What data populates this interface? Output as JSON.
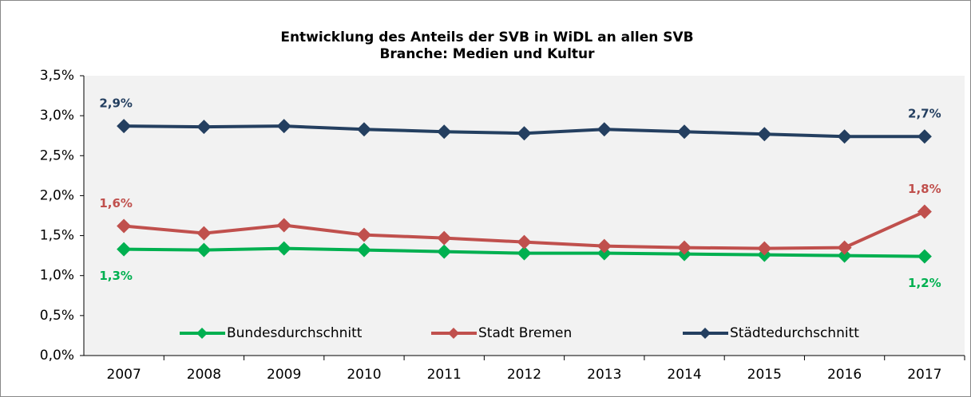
{
  "chart_data": {
    "type": "line",
    "title": "Entwicklung des Anteils der SVB in WiDL an allen SVB",
    "subtitle": "Branche: Medien und Kultur",
    "categories": [
      "2007",
      "2008",
      "2009",
      "2010",
      "2011",
      "2012",
      "2013",
      "2014",
      "2015",
      "2016",
      "2017"
    ],
    "series": [
      {
        "name": "Bundesdurchschnitt",
        "color": "#00b050",
        "values": [
          1.33,
          1.32,
          1.34,
          1.32,
          1.3,
          1.28,
          1.28,
          1.27,
          1.26,
          1.25,
          1.24
        ],
        "value_labels": [
          "1,3%",
          null,
          null,
          null,
          null,
          null,
          null,
          null,
          null,
          null,
          "1,2%"
        ]
      },
      {
        "name": "Stadt Bremen",
        "color": "#c0504d",
        "values": [
          1.62,
          1.53,
          1.63,
          1.51,
          1.47,
          1.42,
          1.37,
          1.35,
          1.34,
          1.35,
          1.8
        ],
        "value_labels": [
          "1,6%",
          null,
          null,
          null,
          null,
          null,
          null,
          null,
          null,
          null,
          "1,8%"
        ]
      },
      {
        "name": "Städtedurchschnitt",
        "color": "#243f60",
        "values": [
          2.87,
          2.86,
          2.87,
          2.83,
          2.8,
          2.78,
          2.83,
          2.8,
          2.77,
          2.74,
          2.74
        ],
        "value_labels": [
          "2,9%",
          null,
          null,
          null,
          null,
          null,
          null,
          null,
          null,
          null,
          "2,7%"
        ]
      }
    ],
    "ylim": [
      0,
      3.5
    ],
    "yticks": [
      {
        "value": 0,
        "label": "0,0%"
      },
      {
        "value": 0.5,
        "label": "0,5%"
      },
      {
        "value": 1,
        "label": "1,0%"
      },
      {
        "value": 1.5,
        "label": "1,5%"
      },
      {
        "value": 2,
        "label": "2,0%"
      },
      {
        "value": 2.5,
        "label": "2,5%"
      },
      {
        "value": 3,
        "label": "3,0%"
      },
      {
        "value": 3.5,
        "label": "3,5%"
      }
    ],
    "grid": false,
    "legend": "bottom"
  }
}
